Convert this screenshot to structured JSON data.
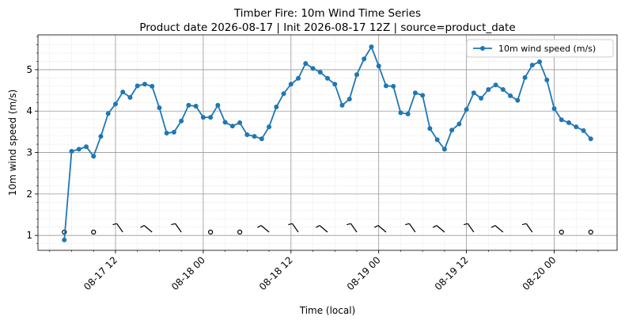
{
  "chart_data": {
    "type": "line",
    "title": "Timber Fire: 10m Wind Time Series",
    "subtitle": "Product date 2026-08-17 | Init 2026-08-17 12Z | source=product_date",
    "x_label": "Time (local)",
    "y_label": "10m wind speed (m/s)",
    "x": [
      "08-17 05",
      "08-17 06",
      "08-17 07",
      "08-17 08",
      "08-17 09",
      "08-17 10",
      "08-17 11",
      "08-17 12",
      "08-17 13",
      "08-17 14",
      "08-17 15",
      "08-17 16",
      "08-17 17",
      "08-17 18",
      "08-17 19",
      "08-17 20",
      "08-17 21",
      "08-17 22",
      "08-17 23",
      "08-18 00",
      "08-18 01",
      "08-18 02",
      "08-18 03",
      "08-18 04",
      "08-18 05",
      "08-18 06",
      "08-18 07",
      "08-18 08",
      "08-18 09",
      "08-18 10",
      "08-18 11",
      "08-18 12",
      "08-18 13",
      "08-18 14",
      "08-18 15",
      "08-18 16",
      "08-18 17",
      "08-18 18",
      "08-18 19",
      "08-18 20",
      "08-18 21",
      "08-18 22",
      "08-18 23",
      "08-19 00",
      "08-19 01",
      "08-19 02",
      "08-19 03",
      "08-19 04",
      "08-19 05",
      "08-19 06",
      "08-19 07",
      "08-19 08",
      "08-19 09",
      "08-19 10",
      "08-19 11",
      "08-19 12",
      "08-19 13",
      "08-19 14",
      "08-19 15",
      "08-19 16",
      "08-19 17",
      "08-19 18",
      "08-19 19",
      "08-19 20",
      "08-19 21",
      "08-19 22",
      "08-19 23",
      "08-20 00",
      "08-20 01",
      "08-20 02",
      "08-20 03",
      "08-20 04",
      "08-20 05"
    ],
    "series": [
      {
        "name": "10m wind speed (m/s)",
        "color": "#1f77b4",
        "values": [
          0.89,
          3.03,
          3.08,
          3.14,
          2.91,
          3.39,
          3.94,
          4.17,
          4.46,
          4.33,
          4.61,
          4.65,
          4.6,
          4.08,
          3.47,
          3.49,
          3.76,
          4.14,
          4.12,
          3.85,
          3.85,
          4.14,
          3.73,
          3.64,
          3.72,
          3.43,
          3.39,
          3.33,
          3.62,
          4.1,
          4.42,
          4.65,
          4.79,
          5.15,
          5.03,
          4.94,
          4.79,
          4.65,
          4.14,
          4.29,
          4.88,
          5.26,
          5.55,
          5.09,
          4.61,
          4.6,
          3.96,
          3.93,
          4.44,
          4.38,
          3.58,
          3.31,
          3.08,
          3.54,
          3.69,
          4.04,
          4.44,
          4.31,
          4.52,
          4.63,
          4.52,
          4.37,
          4.26,
          4.81,
          5.11,
          5.19,
          4.75,
          4.06,
          3.79,
          3.72,
          3.62,
          3.53,
          3.33
        ]
      }
    ],
    "ylim": [
      0.64,
      5.84
    ],
    "yticks": [
      1,
      2,
      3,
      4,
      5
    ],
    "xticks": [
      "08-17 12",
      "08-18 00",
      "08-18 12",
      "08-19 00",
      "08-19 12",
      "08-20 00"
    ],
    "grid": true,
    "legend": "upper right"
  }
}
